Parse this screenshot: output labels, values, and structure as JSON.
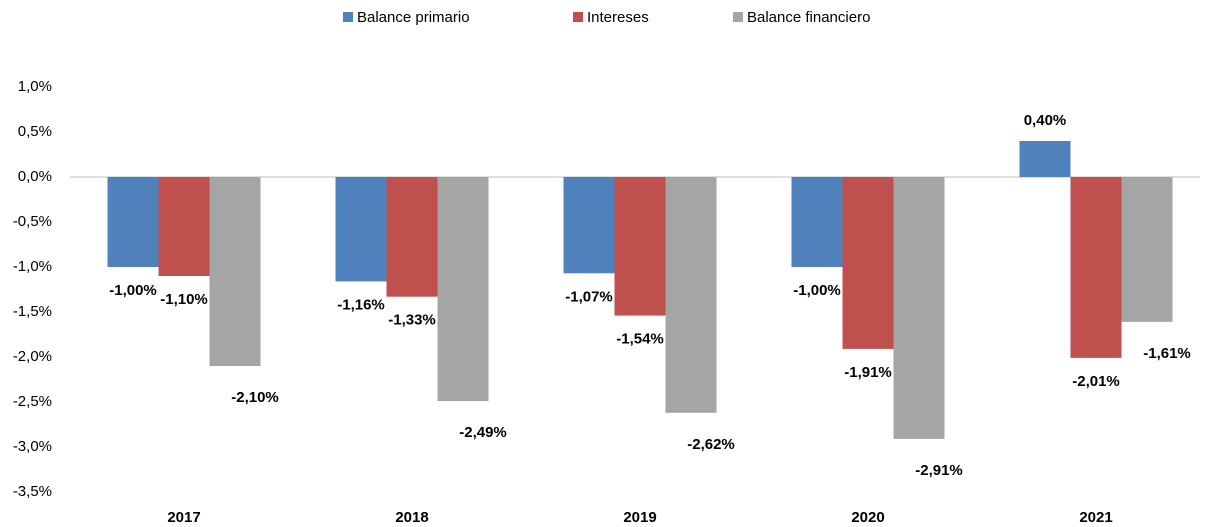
{
  "chart_data": {
    "type": "bar",
    "categories": [
      "2017",
      "2018",
      "2019",
      "2020",
      "2021"
    ],
    "series": [
      {
        "name": "Balance primario",
        "color": "#4f81bd",
        "values": [
          -1.0,
          -1.16,
          -1.07,
          -1.0,
          0.4
        ],
        "value_labels": [
          "-1,00%",
          "-1,16%",
          "-1,07%",
          "-1,00%",
          "0,40%"
        ]
      },
      {
        "name": "Intereses",
        "color": "#c0504d",
        "values": [
          -1.1,
          -1.33,
          -1.54,
          -1.91,
          -2.01
        ],
        "value_labels": [
          "-1,10%",
          "-1,33%",
          "-1,54%",
          "-1,91%",
          "-2,01%"
        ]
      },
      {
        "name": "Balance financiero",
        "color": "#a5a5a5",
        "values": [
          -2.1,
          -2.49,
          -2.62,
          -2.91,
          -1.61
        ],
        "value_labels": [
          "-2,10%",
          "-2,49%",
          "-2,62%",
          "-2,91%",
          "-1,61%"
        ]
      }
    ],
    "ylim": [
      -3.5,
      1.0
    ],
    "yticks": [
      {
        "value": 1.0,
        "label": "1,0%"
      },
      {
        "value": 0.5,
        "label": "0,5%"
      },
      {
        "value": 0.0,
        "label": "0,0%"
      },
      {
        "value": -0.5,
        "label": "-0,5%"
      },
      {
        "value": -1.0,
        "label": "-1,0%"
      },
      {
        "value": -1.5,
        "label": "-1,5%"
      },
      {
        "value": -2.0,
        "label": "-2,0%"
      },
      {
        "value": -2.5,
        "label": "-2,5%"
      },
      {
        "value": -3.0,
        "label": "-3,0%"
      },
      {
        "value": -3.5,
        "label": "-3,5%"
      }
    ],
    "grid": false,
    "legend": "top"
  }
}
